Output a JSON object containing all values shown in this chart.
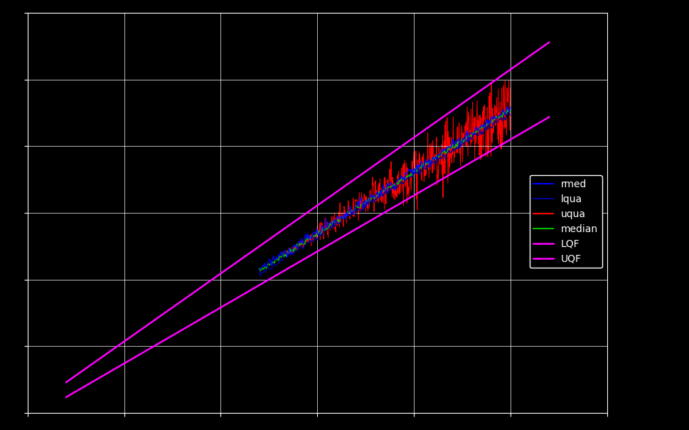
{
  "background_color": "#000000",
  "axes_bg_color": "#000000",
  "grid_color": "#ffffff",
  "text_color": "#ffffff",
  "xlim": [
    0,
    120
  ],
  "ylim": [
    0,
    120
  ],
  "figsize": [
    9.7,
    6.04
  ],
  "dpi": 100,
  "lqf_line": {
    "x": [
      5,
      110
    ],
    "slope": 0.88,
    "intercept": -5
  },
  "uqf_line": {
    "x": [
      5,
      110
    ],
    "slope": 1.05,
    "intercept": 2
  }
}
